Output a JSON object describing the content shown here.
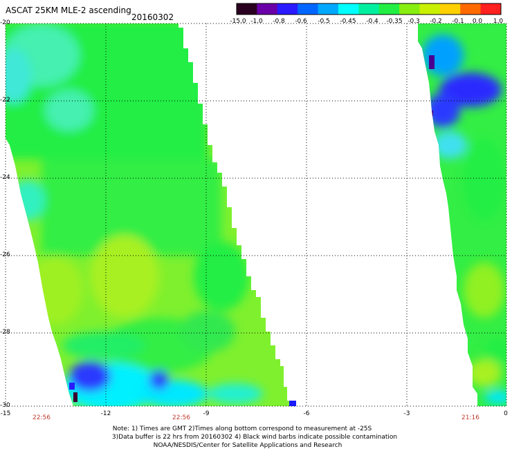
{
  "header": {
    "title": "ASCAT 25KM MLE-2 ascending",
    "date": "20160302"
  },
  "colorbar": {
    "labels": [
      "-15.0",
      "-1.0",
      "-0.8",
      "-0.6",
      "-0.5",
      "-0.45",
      "-0.4",
      "-0.35",
      "-0.3",
      "-0.2",
      "-0.1",
      "0.0",
      "1.0"
    ],
    "colors": [
      "#2a0020",
      "#6a00a8",
      "#2a1aff",
      "#0066ff",
      "#00a8ff",
      "#00ffff",
      "#00f0a0",
      "#22ee44",
      "#88ee10",
      "#c8f000",
      "#ffd000",
      "#ff6a00",
      "#ff2020"
    ]
  },
  "map": {
    "lat_labels": [
      "-20",
      "-22",
      "-24",
      "-26",
      "-28",
      "-30"
    ],
    "lon_labels": [
      "-15",
      "-12",
      "-9",
      "-6",
      "-3",
      "0"
    ],
    "time_labels": [
      "22:56",
      "22:56",
      "21:16"
    ]
  },
  "notes": {
    "line1": "Note: 1) Times are GMT 2)Times along bottom correspond to measurement at -25S",
    "line2": "3)Data buffer is 22 hrs from 20160302 4) Black wind barbs indicate possible contamination",
    "line3": "NOAA/NESDIS/Center for Satellite Applications and Research"
  }
}
